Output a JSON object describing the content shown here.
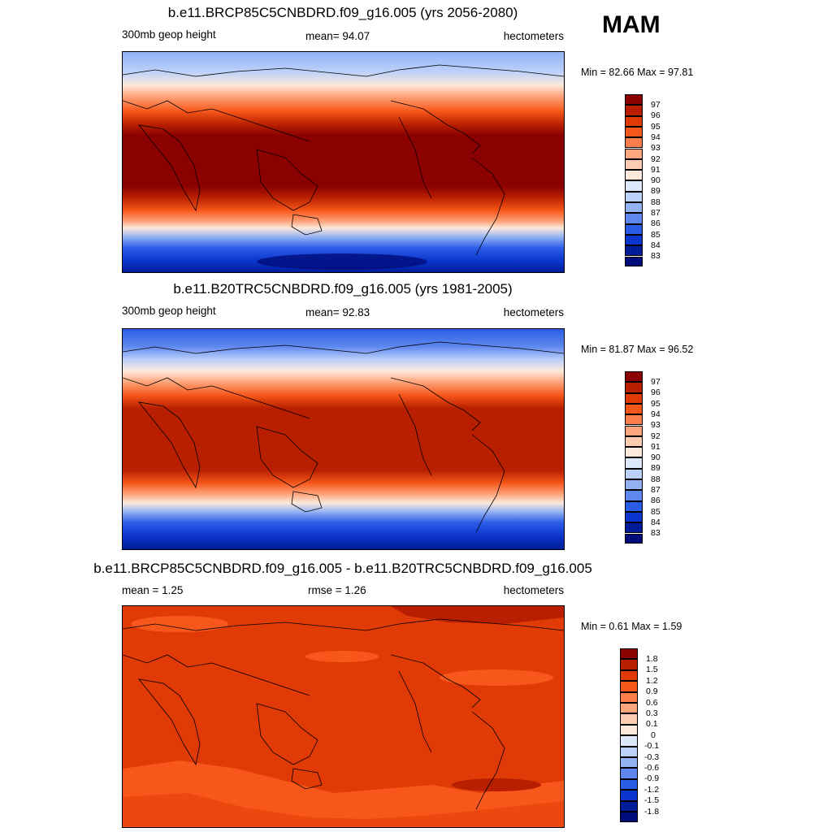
{
  "season": "MAM",
  "panels": [
    {
      "title": "b.e11.BRCP85C5CNBDRD.f09_g16.005 (yrs 2056-2080)",
      "left_label": "300mb geop height",
      "center_label": "mean=  94.07",
      "right_label": "hectometers",
      "minmax": "Min =  82.66 Max =  97.81",
      "colorbar": {
        "labels": [
          "97",
          "96",
          "95",
          "94",
          "93",
          "92",
          "91",
          "90",
          "89",
          "88",
          "87",
          "86",
          "85",
          "84",
          "83"
        ],
        "colors": [
          "#8b0000",
          "#b81f00",
          "#e03a06",
          "#f7571a",
          "#fc7e4a",
          "#fda57c",
          "#fdcbb0",
          "#fde9dc",
          "#dbe7fb",
          "#bcd1fa",
          "#93b2f4",
          "#5f88ef",
          "#2b5ce6",
          "#0b35cc",
          "#001c99",
          "#000c7a"
        ]
      }
    },
    {
      "title": "b.e11.B20TRC5CNBDRD.f09_g16.005 (yrs 1981-2005)",
      "left_label": "300mb geop height",
      "center_label": "mean=  92.83",
      "right_label": "hectometers",
      "minmax": "Min =  81.87 Max =  96.52",
      "colorbar": {
        "labels": [
          "97",
          "96",
          "95",
          "94",
          "93",
          "92",
          "91",
          "90",
          "89",
          "88",
          "87",
          "86",
          "85",
          "84",
          "83"
        ],
        "colors": [
          "#8b0000",
          "#b81f00",
          "#e03a06",
          "#f7571a",
          "#fc7e4a",
          "#fda57c",
          "#fdcbb0",
          "#fde9dc",
          "#dbe7fb",
          "#bcd1fa",
          "#93b2f4",
          "#5f88ef",
          "#2b5ce6",
          "#0b35cc",
          "#001c99",
          "#000c7a"
        ]
      }
    },
    {
      "title": "b.e11.BRCP85C5CNBDRD.f09_g16.005 - b.e11.B20TRC5CNBDRD.f09_g16.005",
      "left_label": "mean =   1.25",
      "center_label": "rmse =   1.26",
      "right_label": "hectometers",
      "minmax": "Min =   0.61 Max =   1.59",
      "colorbar": {
        "labels": [
          "1.8",
          "1.5",
          "1.2",
          "0.9",
          "0.6",
          "0.3",
          "0.1",
          "0",
          "-0.1",
          "-0.3",
          "-0.6",
          "-0.9",
          "-1.2",
          "-1.5",
          "-1.8"
        ],
        "colors": [
          "#8b0000",
          "#b81f00",
          "#e03a06",
          "#f7571a",
          "#fc7e4a",
          "#fda57c",
          "#fdcbb0",
          "#fde9dc",
          "#dbe7fb",
          "#bcd1fa",
          "#93b2f4",
          "#5f88ef",
          "#2b5ce6",
          "#0b35cc",
          "#001c99",
          "#000c7a"
        ]
      }
    }
  ]
}
